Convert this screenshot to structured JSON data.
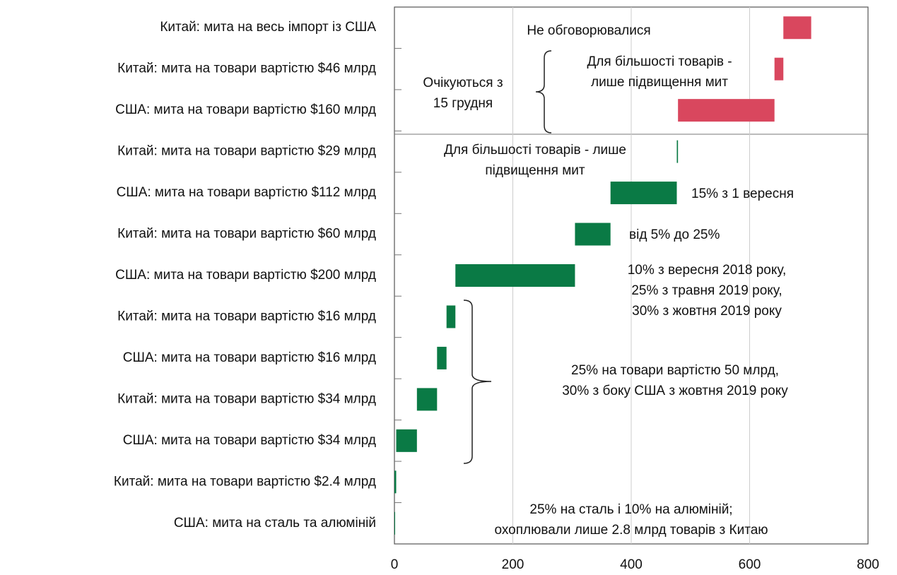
{
  "chart_data": {
    "type": "floating-bar",
    "categories": [
      "Китай: мита на весь імпорт із США",
      "Китай: мита на товари вартістю $46 млрд",
      "США: мита на товари вартістю $160 млрд",
      "Китай: мита на товари вартістю $29 млрд",
      "США: мита на товари вартістю $112 млрд",
      "Китай: мита на товари вартістю $60 млрд",
      "США: мита на товари вартістю $200 млрд",
      "Китай: мита на товари вартістю $16 млрд",
      "США: мита на товари вартістю $16 млрд",
      "Китай: мита на товари вартістю $34 млрд",
      "США: мита на товари вартістю $34 млрд",
      "Китай: мита на товари вартістю $2.4 млрд",
      "США: мита на сталь та алюміній"
    ],
    "values": [
      47,
      15,
      163,
      2,
      112,
      60,
      202,
      15,
      16,
      34,
      35,
      3,
      0
    ],
    "colors": [
      "#d9475e",
      "#d9475e",
      "#d9475e",
      "#0a7a45",
      "#0a7a45",
      "#0a7a45",
      "#0a7a45",
      "#0a7a45",
      "#0a7a45",
      "#0a7a45",
      "#0a7a45",
      "#0a7a45",
      "#0a7a45"
    ],
    "xlim": [
      0,
      800
    ],
    "xticks": [
      0,
      200,
      400,
      600,
      800
    ],
    "grid": true,
    "annotations": [
      {
        "lines": [
          "Не обговорювалися"
        ]
      },
      {
        "lines": [
          "Для більшості товарів -",
          "лише підвищення мит"
        ]
      },
      {
        "lines": [
          "Очікуються з",
          "15 грудня"
        ]
      },
      {
        "lines": [
          "Для більшості товарів - лише",
          "підвищення мит"
        ]
      },
      {
        "lines": [
          "15% з 1 вересня"
        ]
      },
      {
        "lines": [
          "від 5% до 25%"
        ]
      },
      {
        "lines": [
          "10% з вересня 2018 року,",
          "25% з травня 2019 року,",
          "30% з жовтня 2019 року"
        ]
      },
      {
        "lines": [
          "25% на товари вартістю 50 млрд,",
          "30% з боку США з жовтня 2019 року"
        ]
      },
      {
        "lines": [
          "25% на сталь і 10% на алюміній;",
          "охоплювали лише 2.8 млрд товарів з Китаю"
        ]
      }
    ]
  }
}
